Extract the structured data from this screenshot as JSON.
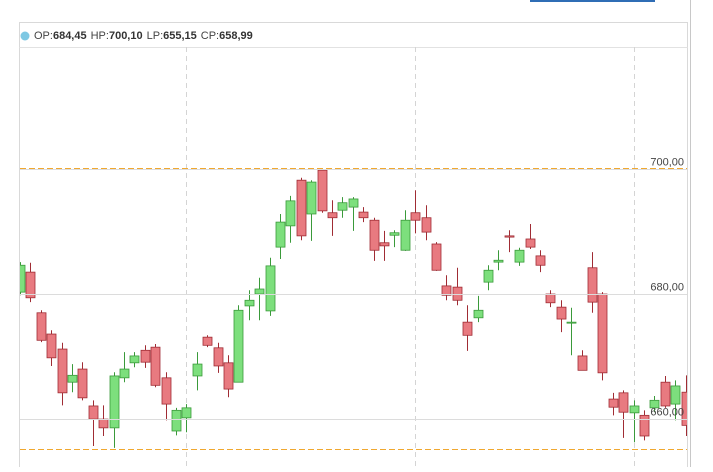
{
  "chart_data": {
    "type": "candlestick",
    "summary": [
      {
        "name": "OP:",
        "value": 684.45,
        "label": "684,45"
      },
      {
        "name": "HP:",
        "value": 700.1,
        "label": "700,10",
        "line_color": "#f0a830"
      },
      {
        "name": "LP:",
        "value": 655.15,
        "label": "655,15",
        "line_color": "#f0a830"
      },
      {
        "name": "CP:",
        "value": 658.99,
        "label": "658,99"
      }
    ],
    "up_color": "#7ddf7d",
    "up_stroke": "#3a9a3a",
    "down_color": "#e87a80",
    "down_stroke": "#a02c34",
    "open": [
      680.3,
      683.5,
      677.0,
      673.6,
      671.2,
      665.9,
      668.0,
      662.1,
      660.0,
      658.6,
      666.6,
      669.0,
      671.0,
      671.5,
      666.6,
      658.1,
      660.2,
      666.9,
      673.1,
      671.4,
      669.0,
      665.9,
      678.1,
      680.0,
      677.3,
      687.5,
      690.9,
      698.2,
      692.8,
      699.8,
      693.0,
      693.4,
      693.9,
      693.1,
      691.8,
      688.2,
      689.4,
      687.0,
      693.0,
      692.2,
      688.0,
      681.3,
      681.1,
      675.5,
      676.2,
      681.9,
      685.1,
      689.3,
      685.1,
      688.8,
      686.1,
      680.0,
      677.9,
      675.4,
      670.1,
      684.2,
      680.0,
      663.2,
      664.2,
      661.0,
      660.6,
      661.8,
      665.9,
      662.4,
      664.3
    ],
    "high": [
      685.1,
      685.0,
      677.4,
      674.2,
      672.2,
      668.8,
      669.1,
      663.0,
      662.2,
      667.5,
      670.7,
      670.7,
      671.8,
      672.0,
      667.5,
      661.8,
      662.4,
      670.7,
      673.4,
      672.2,
      670.2,
      678.2,
      680.6,
      682.6,
      685.8,
      692.8,
      695.7,
      698.6,
      698.2,
      700.0,
      695.0,
      695.5,
      695.5,
      693.9,
      692.2,
      690.1,
      690.2,
      693.4,
      696.6,
      694.2,
      688.3,
      683.0,
      684.2,
      678.2,
      679.7,
      684.6,
      687.0,
      690.2,
      687.4,
      691.2,
      687.0,
      680.6,
      679.0,
      677.8,
      671.0,
      686.7,
      680.3,
      664.2,
      664.6,
      663.0,
      661.4,
      663.7,
      666.9,
      666.2,
      667.0
    ],
    "low": [
      679.8,
      678.7,
      672.3,
      668.5,
      662.2,
      664.3,
      663.0,
      655.7,
      657.3,
      655.4,
      665.9,
      668.3,
      668.2,
      665.1,
      659.8,
      657.4,
      657.9,
      664.6,
      671.5,
      667.4,
      663.5,
      665.9,
      675.8,
      675.8,
      676.5,
      685.6,
      688.2,
      688.6,
      688.5,
      693.0,
      689.3,
      692.2,
      690.1,
      691.5,
      685.3,
      685.3,
      687.5,
      686.9,
      689.7,
      688.6,
      683.7,
      679.0,
      678.2,
      670.9,
      675.5,
      680.6,
      683.8,
      686.7,
      684.5,
      687.2,
      683.5,
      677.9,
      673.9,
      670.2,
      667.8,
      677.0,
      666.2,
      660.6,
      657.0,
      656.3,
      656.6,
      661.1,
      661.8,
      659.8,
      657.3
    ],
    "close": [
      684.6,
      679.4,
      672.6,
      669.8,
      664.2,
      667.0,
      663.4,
      660.0,
      658.6,
      666.9,
      668.0,
      670.1,
      669.1,
      665.4,
      662.4,
      661.4,
      661.8,
      668.8,
      671.8,
      668.5,
      664.8,
      677.4,
      679.0,
      680.8,
      684.5,
      691.5,
      694.9,
      689.3,
      697.9,
      693.3,
      692.2,
      694.6,
      695.2,
      692.2,
      687.0,
      687.7,
      689.8,
      691.8,
      691.8,
      689.9,
      683.8,
      679.8,
      679.0,
      673.4,
      677.4,
      683.8,
      685.4,
      689.1,
      687.0,
      687.5,
      684.6,
      678.6,
      676.0,
      675.5,
      667.8,
      678.7,
      667.4,
      661.9,
      661.1,
      662.1,
      657.3,
      663.0,
      662.1,
      665.3,
      659.0
    ],
    "ylim": [
      652.5,
      719.5
    ],
    "yticks": [
      {
        "value": 660,
        "label": "660,00"
      },
      {
        "value": 680,
        "label": "680,00"
      },
      {
        "value": 700,
        "label": "700,00"
      }
    ],
    "grid": true
  }
}
